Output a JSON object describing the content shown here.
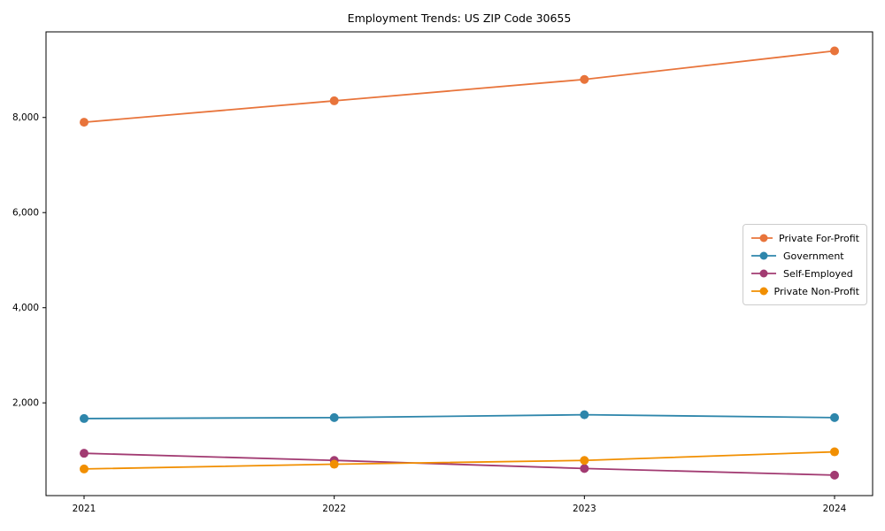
{
  "chart_data": {
    "type": "line",
    "title": "Employment Trends: US ZIP Code 30655",
    "x": [
      2021,
      2022,
      2023,
      2024
    ],
    "x_tick_labels": [
      "2021",
      "2022",
      "2023",
      "2024"
    ],
    "series": [
      {
        "name": "Private For-Profit",
        "color": "#e8743b",
        "values": [
          7900,
          8350,
          8800,
          9400
        ]
      },
      {
        "name": "Government",
        "color": "#2e86ab",
        "values": [
          1670,
          1690,
          1750,
          1690
        ]
      },
      {
        "name": "Self-Employed",
        "color": "#a23b72",
        "values": [
          940,
          790,
          620,
          480
        ]
      },
      {
        "name": "Private Non-Profit",
        "color": "#f18f01",
        "values": [
          610,
          710,
          790,
          970
        ]
      }
    ],
    "y_ticks": [
      2000,
      4000,
      6000,
      8000
    ],
    "y_tick_labels": [
      "2,000",
      "4,000",
      "6,000",
      "8,000"
    ],
    "ylim": [
      50,
      9800
    ],
    "grid": false,
    "legend_position": "right-center",
    "marker": "circle",
    "xlabel": "",
    "ylabel": ""
  }
}
